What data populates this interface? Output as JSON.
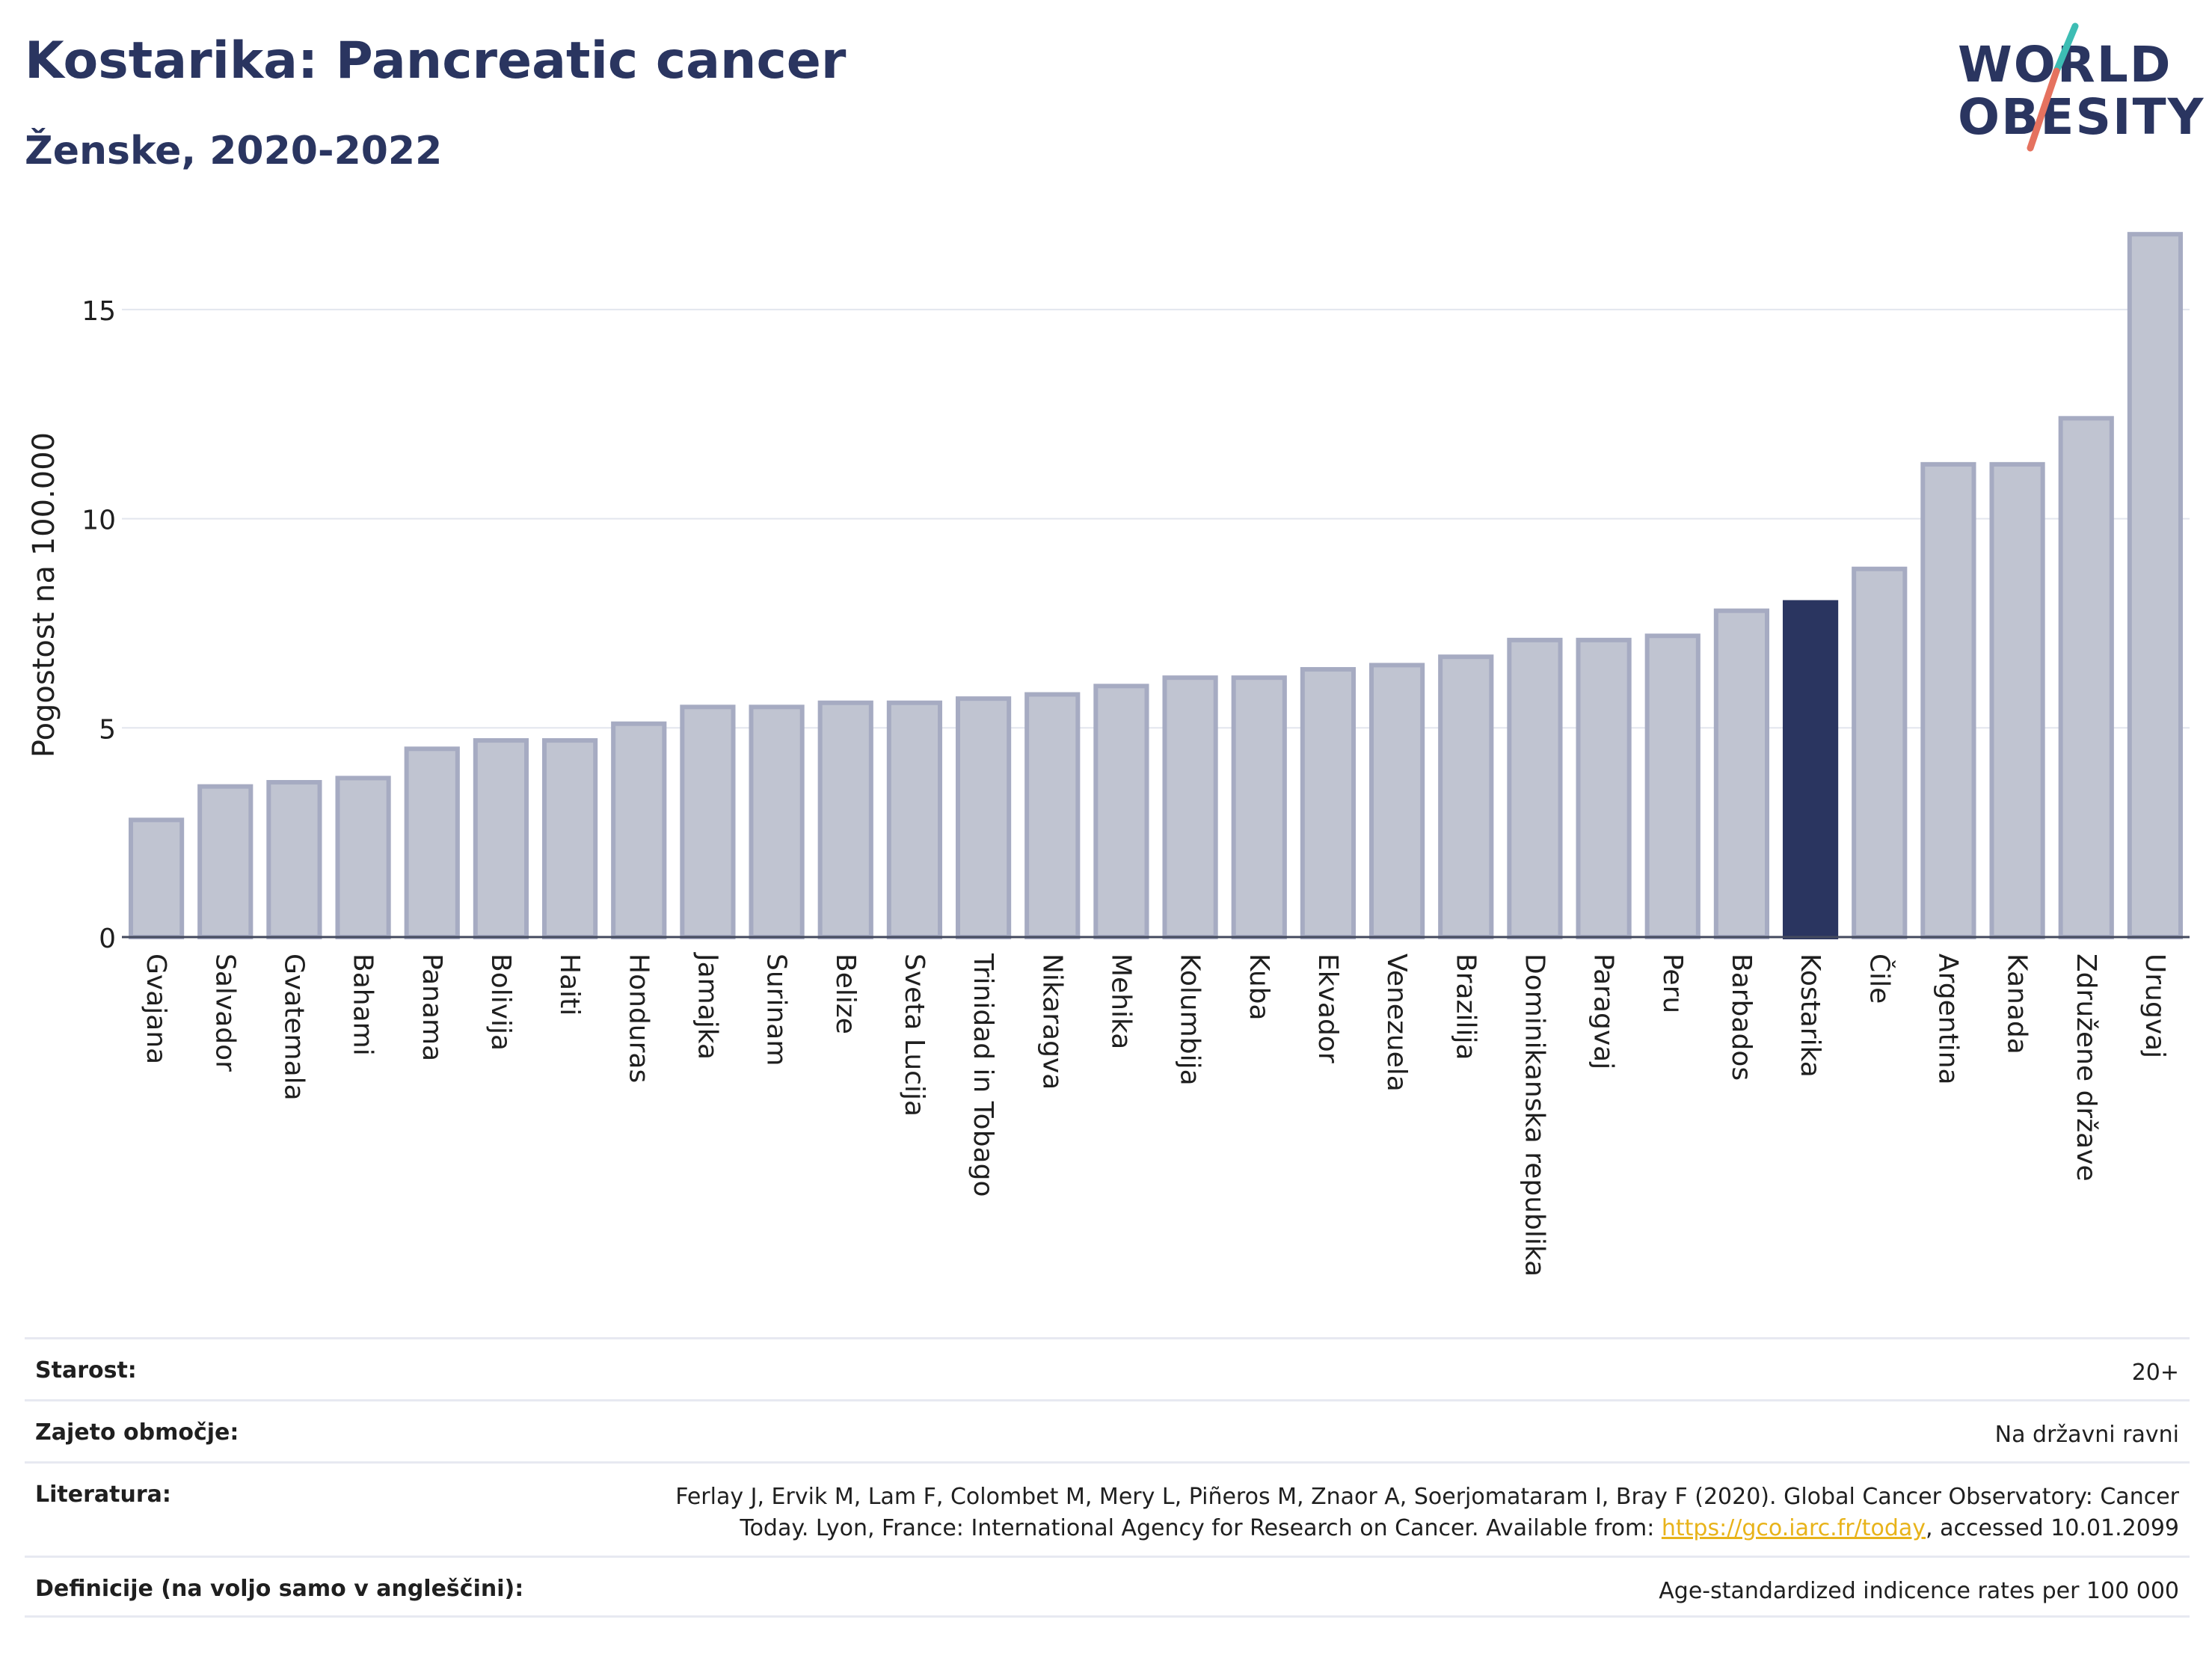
{
  "header": {
    "title": "Kostarika: Pancreatic cancer",
    "subtitle": "Ženske, 2020-2022"
  },
  "logo": {
    "line1": "WORLD",
    "line2": "OBESITY",
    "colors": {
      "teal": "#3dbdb4",
      "coral": "#e5725f"
    }
  },
  "chart_data": {
    "type": "bar",
    "ylabel": "Pogostost na 100.000",
    "ylim": [
      0,
      17
    ],
    "yticks": [
      0,
      5,
      10,
      15
    ],
    "grid": true,
    "highlight": "Kostarika",
    "colors": {
      "bar": "#c0c4d1",
      "bar_edge": "#a6abc2",
      "highlight": "#2a3560"
    },
    "categories": [
      "Gvajana",
      "Salvador",
      "Gvatemala",
      "Bahami",
      "Panama",
      "Bolivija",
      "Haiti",
      "Honduras",
      "Jamajka",
      "Surinam",
      "Belize",
      "Sveta Lucija",
      "Trinidad in Tobago",
      "Nikaragva",
      "Mehika",
      "Kolumbija",
      "Kuba",
      "Ekvador",
      "Venezuela",
      "Brazilija",
      "Dominikanska republika",
      "Paragvaj",
      "Peru",
      "Barbados",
      "Kostarika",
      "Čile",
      "Argentina",
      "Kanada",
      "Združene države",
      "Urugvaj"
    ],
    "values": [
      2.8,
      3.6,
      3.7,
      3.8,
      4.5,
      4.7,
      4.7,
      5.1,
      5.5,
      5.5,
      5.6,
      5.6,
      5.7,
      5.8,
      6.0,
      6.2,
      6.2,
      6.4,
      6.5,
      6.7,
      7.1,
      7.1,
      7.2,
      7.8,
      8.0,
      8.8,
      11.3,
      11.3,
      12.4,
      16.8
    ]
  },
  "meta": [
    {
      "label": "Starost:",
      "value": "20+"
    },
    {
      "label": "Zajeto območje:",
      "value": "Na državni ravni"
    },
    {
      "label": "Literatura:",
      "value_line1": "Ferlay J, Ervik M, Lam F, Colombet M, Mery L, Piñeros M, Znaor A, Soerjomataram I, Bray F (2020). Global Cancer Observatory: Cancer",
      "value_pre": "Today. Lyon, France: International Agency for Research on Cancer. Available from: ",
      "link": "https://gco.iarc.fr/today",
      "value_post": ", accessed 10.01.2099"
    },
    {
      "label": "Definicije (na voljo samo v angleščini):",
      "value": "Age-standardized indicence rates per 100 000"
    }
  ]
}
